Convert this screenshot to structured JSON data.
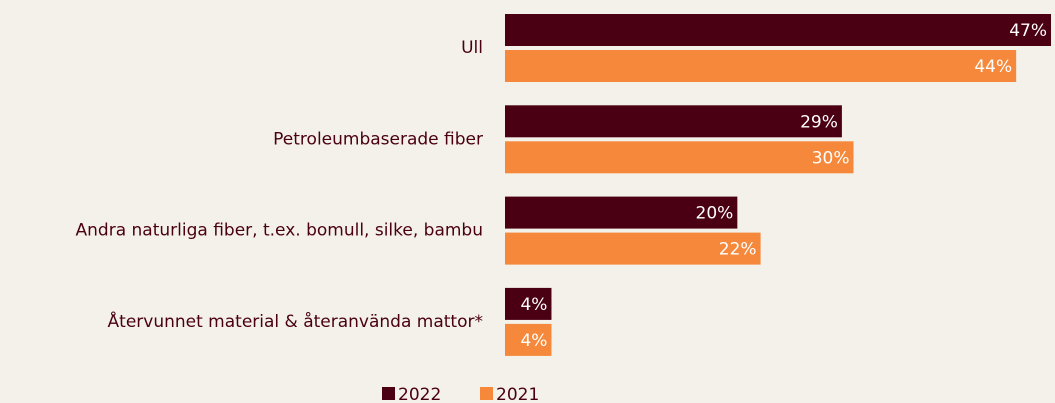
{
  "chart_data": {
    "type": "barh",
    "categories": [
      "Ull",
      "Petroleumbaserade fiber",
      "Andra naturliga fiber, t.ex. bomull, silke, bambu",
      "Återvunnet material & återanvända mattor*"
    ],
    "series": [
      {
        "name": "2022",
        "color": "#4a0012",
        "values": [
          47,
          29,
          20,
          4
        ],
        "value_labels": [
          "47%",
          "29%",
          "20%",
          "4%"
        ]
      },
      {
        "name": "2021",
        "color": "#f5883a",
        "values": [
          44,
          30,
          22,
          4
        ],
        "value_labels": [
          "44%",
          "30%",
          "22%",
          "4%"
        ]
      }
    ],
    "legend": "bottom"
  }
}
